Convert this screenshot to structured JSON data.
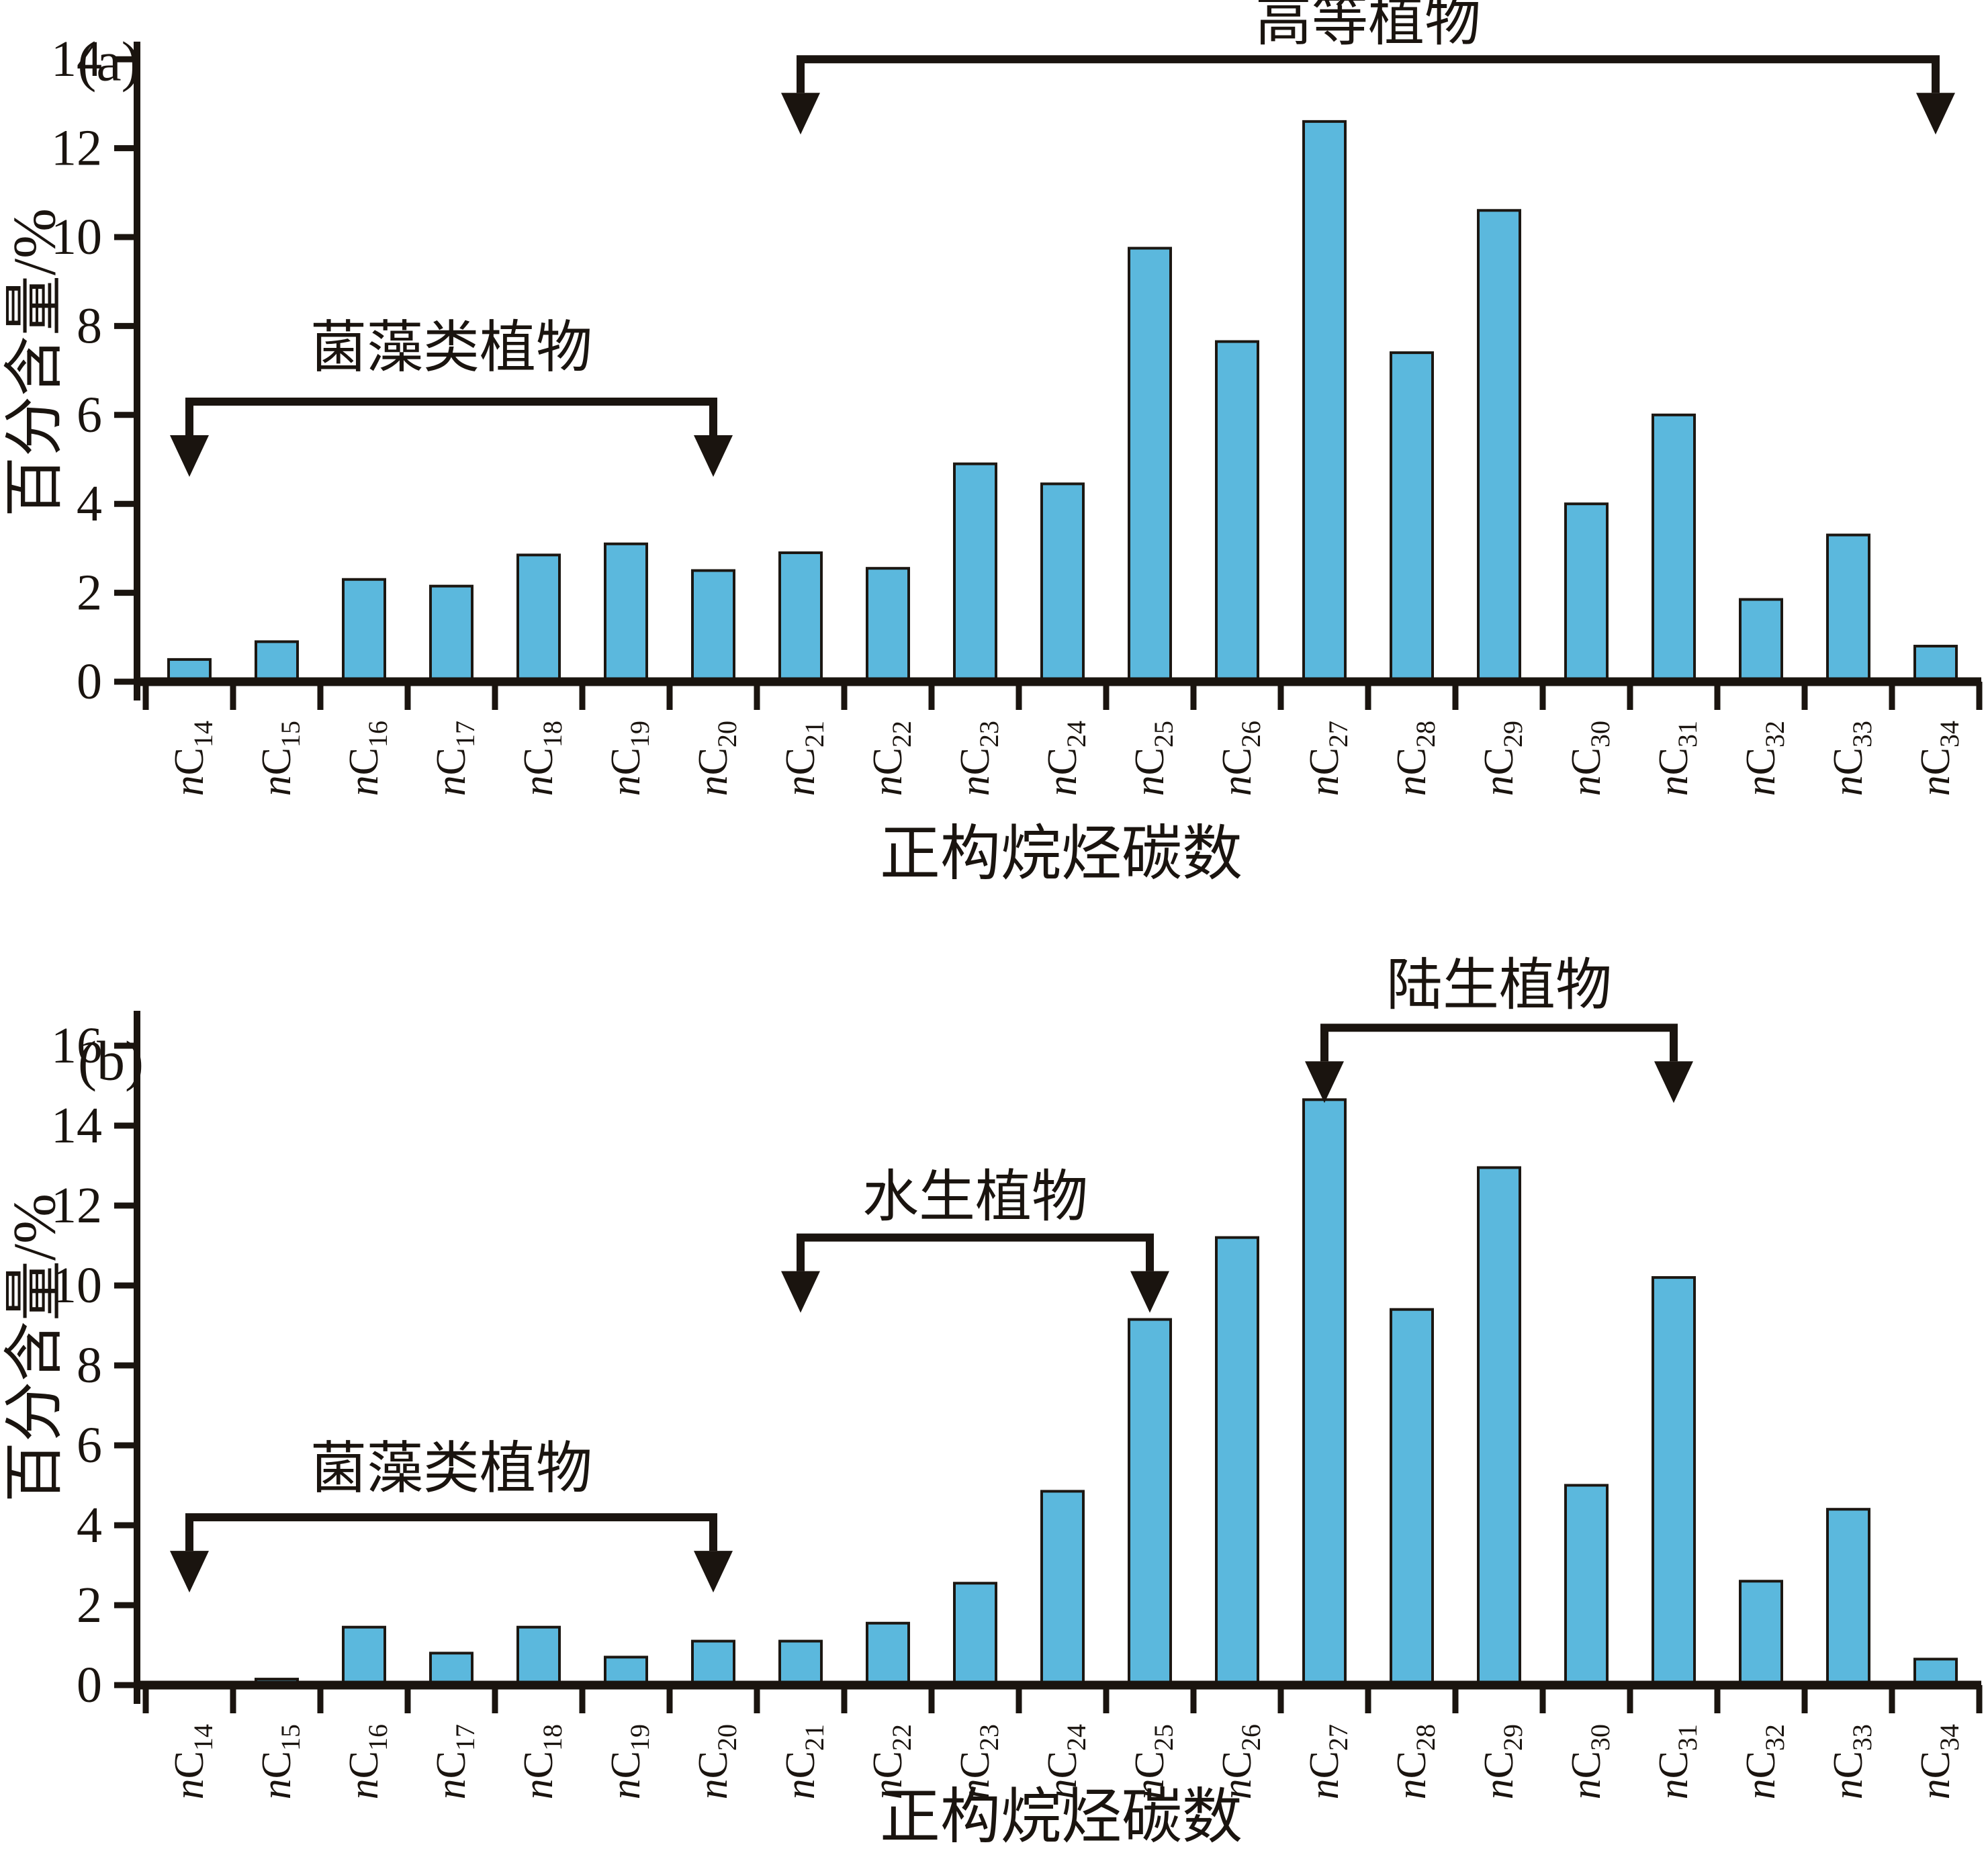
{
  "figure": {
    "background": "#ffffff",
    "bar_fill": "#5bb8dd",
    "bar_stroke": "#1c1712",
    "axis_color": "#1a140f",
    "text_color": "#1a140f"
  },
  "chart_data": [
    {
      "type": "bar",
      "panel_label": "(a)",
      "xlabel": "正构烷烃碳数",
      "ylabel": "百分含量/%",
      "ylim": [
        0,
        14
      ],
      "ytick_step": 2,
      "ytick_labels": [
        "0",
        "2",
        "4",
        "6",
        "8",
        "10",
        "12",
        "14"
      ],
      "grid": false,
      "legend": null,
      "category_prefix": "n",
      "category_symbol": "C",
      "category_subscripts": [
        "14",
        "15",
        "16",
        "17",
        "18",
        "19",
        "20",
        "21",
        "22",
        "23",
        "24",
        "25",
        "26",
        "27",
        "28",
        "29",
        "30",
        "31",
        "32",
        "33",
        "34"
      ],
      "categories": [
        "nC14",
        "nC15",
        "nC16",
        "nC17",
        "nC18",
        "nC19",
        "nC20",
        "nC21",
        "nC22",
        "nC23",
        "nC24",
        "nC25",
        "nC26",
        "nC27",
        "nC28",
        "nC29",
        "nC30",
        "nC31",
        "nC32",
        "nC33",
        "nC34"
      ],
      "values": [
        0.5,
        0.9,
        2.3,
        2.15,
        2.85,
        3.1,
        2.5,
        2.9,
        2.55,
        4.9,
        4.45,
        9.75,
        7.65,
        12.6,
        7.4,
        10.6,
        4.0,
        6.0,
        1.85,
        3.3,
        0.8
      ],
      "annotations": [
        {
          "label": "菌藻类植物",
          "from": "nC14",
          "to": "nC20",
          "bracket_y": 6.3,
          "label_y": 7.5
        },
        {
          "label": "高等植物",
          "from": "nC21",
          "to": "nC34",
          "bracket_y": 14.0,
          "label_y": 14.85
        }
      ]
    },
    {
      "type": "bar",
      "panel_label": "(b)",
      "xlabel": "正构烷烃碳数",
      "ylabel": "百分含量/%",
      "ylim": [
        0,
        16
      ],
      "ytick_step": 2,
      "ytick_labels": [
        "0",
        "2",
        "4",
        "6",
        "8",
        "10",
        "12",
        "14",
        "16"
      ],
      "grid": false,
      "legend": null,
      "category_prefix": "n",
      "category_symbol": "C",
      "category_subscripts": [
        "14",
        "15",
        "16",
        "17",
        "18",
        "19",
        "20",
        "21",
        "22",
        "23",
        "24",
        "25",
        "26",
        "27",
        "28",
        "29",
        "30",
        "31",
        "32",
        "33",
        "34"
      ],
      "categories": [
        "nC14",
        "nC15",
        "nC16",
        "nC17",
        "nC18",
        "nC19",
        "nC20",
        "nC21",
        "nC22",
        "nC23",
        "nC24",
        "nC25",
        "nC26",
        "nC27",
        "nC28",
        "nC29",
        "nC30",
        "nC31",
        "nC32",
        "nC33",
        "nC34"
      ],
      "values": [
        0.05,
        0.15,
        1.45,
        0.8,
        1.45,
        0.7,
        1.1,
        1.1,
        1.55,
        2.55,
        4.85,
        9.15,
        11.2,
        14.65,
        9.4,
        12.95,
        5.0,
        10.2,
        2.6,
        4.4,
        0.65
      ],
      "annotations": [
        {
          "label": "菌藻类植物",
          "from": "nC14",
          "to": "nC20",
          "bracket_y": 4.2,
          "label_y": 5.4
        },
        {
          "label": "水生植物",
          "from": "nC21",
          "to": "nC25",
          "bracket_y": 11.2,
          "label_y": 12.2
        },
        {
          "label": "陆生植物",
          "from": "nC27",
          "to": "nC31",
          "bracket_y": 16.45,
          "label_y": 17.5
        }
      ]
    }
  ]
}
